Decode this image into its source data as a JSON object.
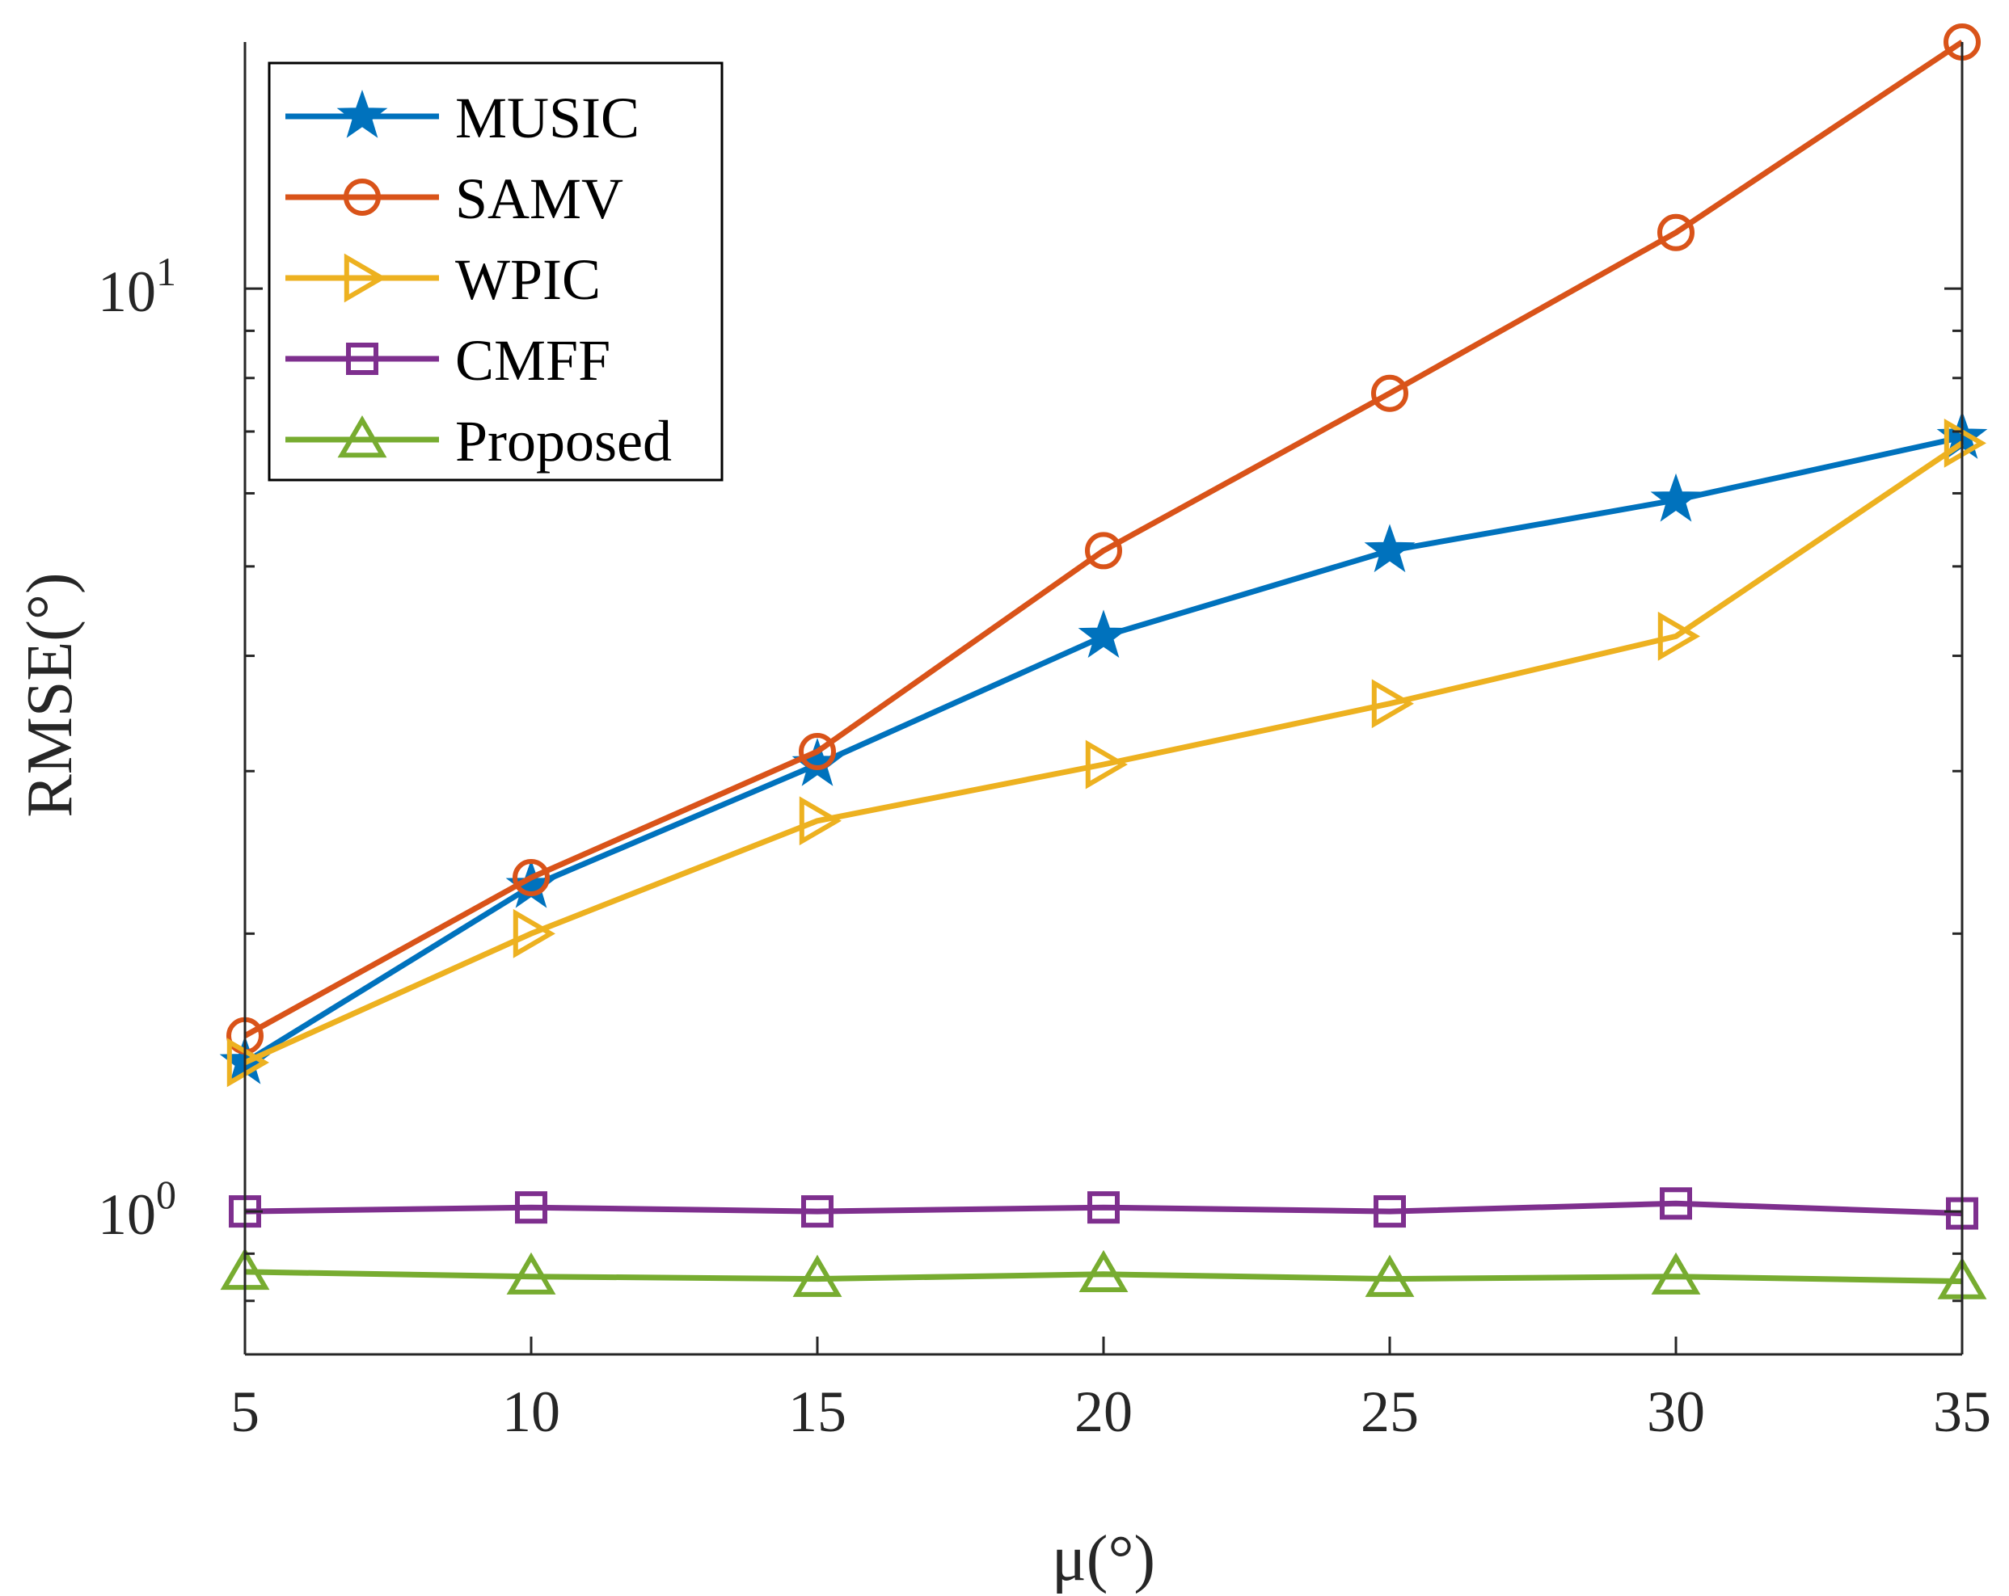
{
  "chart_data": {
    "type": "line",
    "title": "",
    "xlabel": "μ(°)",
    "ylabel": "RMSE(°)",
    "yscale": "log",
    "x": [
      5,
      10,
      15,
      20,
      25,
      30,
      35
    ],
    "xlim": [
      5,
      35
    ],
    "ylim": [
      0.7,
      18.5
    ],
    "xticks": [
      5,
      10,
      15,
      20,
      25,
      30,
      35
    ],
    "xtick_labels": [
      "5",
      "10",
      "15",
      "20",
      "25",
      "30",
      "35"
    ],
    "yticks": [
      {
        "value": 1,
        "base": "10",
        "exp": "0"
      },
      {
        "value": 10,
        "base": "10",
        "exp": "1"
      }
    ],
    "grid": false,
    "legend_position": "top-left",
    "series": [
      {
        "name": "MUSIC",
        "color": "#0072BD",
        "marker": "star",
        "values": [
          1.45,
          2.25,
          3.05,
          4.2,
          5.2,
          5.9,
          6.9
        ]
      },
      {
        "name": "SAMV",
        "color": "#D95319",
        "marker": "circle",
        "values": [
          1.55,
          2.3,
          3.15,
          5.2,
          7.7,
          11.5,
          18.5
        ]
      },
      {
        "name": "WPIC",
        "color": "#EDB120",
        "marker": "triangle-right",
        "values": [
          1.45,
          2.0,
          2.65,
          3.05,
          3.55,
          4.2,
          6.8
        ]
      },
      {
        "name": "CMFF",
        "color": "#7E2F8E",
        "marker": "square",
        "values": [
          1.0,
          1.01,
          1.0,
          1.01,
          1.0,
          1.02,
          0.995
        ]
      },
      {
        "name": "Proposed",
        "color": "#77AC30",
        "marker": "triangle-up",
        "values": [
          0.86,
          0.85,
          0.845,
          0.855,
          0.845,
          0.85,
          0.84
        ]
      }
    ]
  }
}
